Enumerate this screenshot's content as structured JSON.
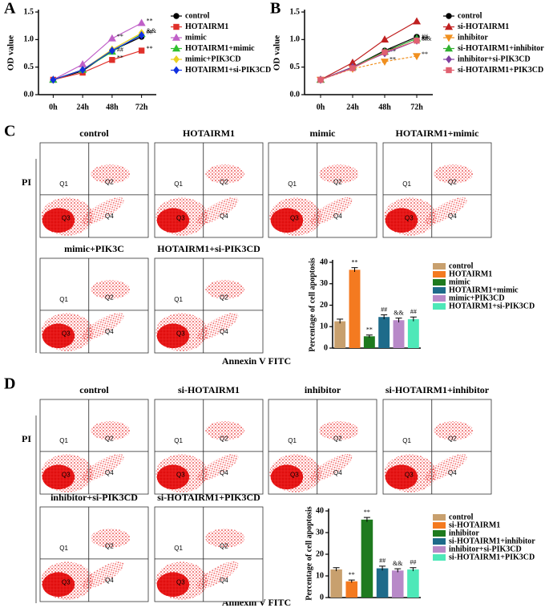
{
  "chart_data": [
    {
      "type": "line",
      "panel_label": "A",
      "y_label": "OD value",
      "categories": [
        "0h",
        "24h",
        "48h",
        "72h"
      ],
      "ylim": [
        0,
        1.5
      ],
      "yticks": [
        {
          "value": 0,
          "label": "0.0"
        },
        0.5,
        {
          "value": 1,
          "label": "1.0"
        },
        1.5
      ],
      "series": [
        {
          "name": "control",
          "color": "#000000",
          "marker": "circle",
          "values": [
            0.27,
            0.43,
            0.8,
            1.05
          ],
          "annotations": [
            null,
            null,
            null,
            null
          ]
        },
        {
          "name": "HOTAIRM1",
          "color": "#e0302a",
          "marker": "square",
          "values": [
            0.27,
            0.4,
            0.63,
            0.8
          ],
          "annotations": [
            null,
            null,
            "**",
            "**"
          ]
        },
        {
          "name": "mimic",
          "color": "#c060c8",
          "marker": "triangle",
          "values": [
            0.27,
            0.55,
            1.02,
            1.3
          ],
          "annotations": [
            null,
            null,
            "**",
            "**"
          ]
        },
        {
          "name": "HOTAIRM1+mimic",
          "color": "#30c030",
          "marker": "triangle",
          "values": [
            0.27,
            0.45,
            0.78,
            1.1
          ],
          "annotations": [
            null,
            null,
            "##",
            "##"
          ]
        },
        {
          "name": "mimic+PIK3CD",
          "color": "#e8d020",
          "marker": "diamond",
          "values": [
            0.27,
            0.45,
            0.82,
            1.12
          ],
          "annotations": [
            null,
            null,
            null,
            "&&"
          ]
        },
        {
          "name": "HOTAIRM1+si-PIK3CD",
          "color": "#1030e0",
          "marker": "diamond",
          "values": [
            0.27,
            0.45,
            0.8,
            1.08
          ],
          "annotations": [
            null,
            null,
            null,
            null
          ]
        }
      ]
    },
    {
      "type": "line",
      "panel_label": "B",
      "y_label": "OD value",
      "categories": [
        "0h",
        "24h",
        "48h",
        "72h"
      ],
      "ylim": [
        0,
        1.5
      ],
      "yticks": [
        {
          "value": 0,
          "label": "0.0"
        },
        0.5,
        {
          "value": 1,
          "label": "1.0"
        },
        1.5
      ],
      "series": [
        {
          "name": "control",
          "color": "#000000",
          "marker": "circle",
          "values": [
            0.27,
            0.5,
            0.8,
            1.05
          ],
          "annotations": [
            null,
            null,
            null,
            null
          ]
        },
        {
          "name": "si-HOTAIRM1",
          "color": "#c02020",
          "marker": "triangle",
          "values": [
            0.27,
            0.58,
            1.0,
            1.33
          ],
          "annotations": [
            null,
            null,
            null,
            null
          ]
        },
        {
          "name": "inhibitor",
          "color": "#f09020",
          "marker": "triangle-down",
          "linestyle": "dashed",
          "values": [
            0.27,
            0.47,
            0.6,
            0.7
          ],
          "annotations": [
            null,
            null,
            "**",
            "**"
          ]
        },
        {
          "name": "si-HOTAIRM1+inhibitor",
          "color": "#30b030",
          "marker": "triangle",
          "values": [
            0.27,
            0.5,
            0.78,
            1.02
          ],
          "annotations": [
            null,
            null,
            "##",
            "##"
          ]
        },
        {
          "name": "inhibitor+si-PIK3CD",
          "color": "#8040a0",
          "marker": "diamond",
          "values": [
            0.27,
            0.5,
            0.75,
            0.98
          ],
          "annotations": [
            null,
            null,
            null,
            "&&"
          ]
        },
        {
          "name": "si-HOTAIRM1+PIK3CD",
          "color": "#e06070",
          "marker": "square",
          "values": [
            0.27,
            0.48,
            0.77,
            0.98
          ],
          "annotations": [
            null,
            null,
            null,
            "##"
          ]
        }
      ]
    },
    {
      "type": "bar",
      "y_label": "Percentage of cell apoptosis",
      "categories": [
        "control",
        "HOTAIRM1",
        "mimic",
        "HOTAIRM1+mimic",
        "mimic+PIK3CD",
        "HOTAIRM1+si-PIK3CD"
      ],
      "values": [
        12.5,
        36.5,
        5.5,
        14.5,
        13,
        13.5
      ],
      "errors": [
        1,
        1,
        0.6,
        1,
        1,
        1
      ],
      "annotations": [
        null,
        "**",
        "**",
        "##",
        "&&",
        "##"
      ],
      "colors": [
        "#c8a06e",
        "#f47a20",
        "#1e7a1e",
        "#1e6b8a",
        "#b889c8",
        "#4ee8b8"
      ],
      "ylim": [
        0,
        40
      ],
      "yticks": [
        0,
        10,
        20,
        30,
        40
      ]
    },
    {
      "type": "bar",
      "y_label": "Percentage of cell apoptosis",
      "categories": [
        "control",
        "si-HOTAIRM1",
        "inhibitor",
        "si-HOTAIRM1+inhibitor",
        "inhibitor+si-PIK3CD",
        "si-HOTAIRM1+PIK3CD"
      ],
      "values": [
        13,
        7.5,
        36,
        13.5,
        12.5,
        13
      ],
      "errors": [
        0.8,
        0.6,
        1,
        1,
        0.8,
        0.8
      ],
      "annotations": [
        null,
        "**",
        "**",
        "##",
        "&&",
        "##"
      ],
      "colors": [
        "#c8a06e",
        "#f47a20",
        "#1e7a1e",
        "#1e6b8a",
        "#b889c8",
        "#4ee8b8"
      ],
      "ylim": [
        0,
        40
      ],
      "yticks": [
        0,
        10,
        20,
        30,
        40
      ]
    }
  ],
  "flow_panels": [
    {
      "panel_label": "C",
      "titles": [
        "control",
        "HOTAIRM1",
        "mimic",
        "HOTAIRM1+mimic",
        "mimic+PIK3C",
        "HOTAIRM1+si-PIK3CD"
      ],
      "quadrants": [
        "Q1",
        "Q2",
        "Q3",
        "Q4"
      ],
      "y_label": "PI",
      "x_label": "Annexin V FITC"
    },
    {
      "panel_label": "D",
      "titles": [
        "control",
        "si-HOTAIRM1",
        "inhibitor",
        "si-HOTAIRM1+inhibitor",
        "inhibitor+si-PIK3CD",
        "si-HOTAIRM1+PIK3CD"
      ],
      "quadrants": [
        "Q1",
        "Q2",
        "Q3",
        "Q4"
      ],
      "y_label": "PI",
      "x_label": "Annexin V FITC"
    }
  ]
}
